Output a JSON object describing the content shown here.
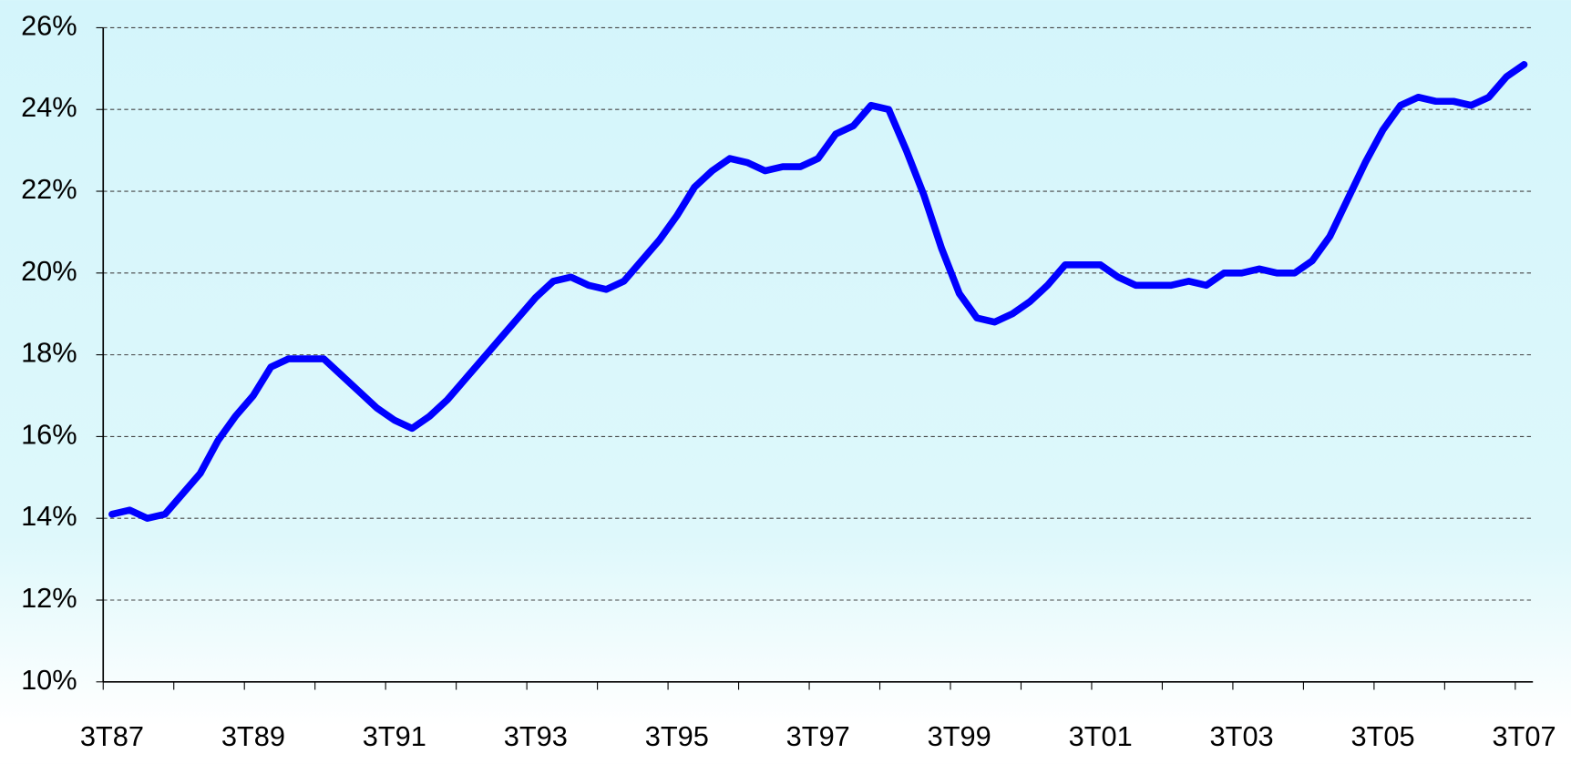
{
  "chart_data": {
    "type": "line",
    "categories": [
      "3T87",
      null,
      null,
      null,
      null,
      null,
      null,
      null,
      "3T89",
      null,
      null,
      null,
      null,
      null,
      null,
      null,
      "3T91",
      null,
      null,
      null,
      null,
      null,
      null,
      null,
      "3T93",
      null,
      null,
      null,
      null,
      null,
      null,
      null,
      "3T95",
      null,
      null,
      null,
      null,
      null,
      null,
      null,
      "3T97",
      null,
      null,
      null,
      null,
      null,
      null,
      null,
      "3T99",
      null,
      null,
      null,
      null,
      null,
      null,
      null,
      "3T01",
      null,
      null,
      null,
      null,
      null,
      null,
      null,
      "3T03",
      null,
      null,
      null,
      null,
      null,
      null,
      null,
      "3T05",
      null,
      null,
      null,
      null,
      null,
      null,
      null,
      "3T07"
    ],
    "values": [
      14.1,
      14.2,
      14.0,
      14.1,
      14.6,
      15.1,
      15.9,
      16.5,
      17.0,
      17.7,
      17.9,
      17.9,
      17.9,
      17.5,
      17.1,
      16.7,
      16.4,
      16.2,
      16.5,
      16.9,
      17.4,
      17.9,
      18.4,
      18.9,
      19.4,
      19.8,
      19.9,
      19.7,
      19.6,
      19.8,
      20.3,
      20.8,
      21.4,
      22.1,
      22.5,
      22.8,
      22.7,
      22.5,
      22.6,
      22.6,
      22.8,
      23.4,
      23.6,
      24.1,
      24.0,
      23.0,
      21.9,
      20.6,
      19.5,
      18.9,
      18.8,
      19.0,
      19.3,
      19.7,
      20.2,
      20.2,
      20.2,
      19.9,
      19.7,
      19.7,
      19.7,
      19.8,
      19.7,
      20.0,
      20.0,
      20.1,
      20.0,
      20.0,
      20.3,
      20.9,
      21.8,
      22.7,
      23.5,
      24.1,
      24.3,
      24.2,
      24.2,
      24.1,
      24.3,
      24.8,
      25.1
    ],
    "color": "#0000ff",
    "ylim": [
      10,
      26
    ],
    "yticks": [
      {
        "value": 10,
        "label": "10%"
      },
      {
        "value": 12,
        "label": "12%"
      },
      {
        "value": 14,
        "label": "14%"
      },
      {
        "value": 16,
        "label": "16%"
      },
      {
        "value": 18,
        "label": "18%"
      },
      {
        "value": 20,
        "label": "20%"
      },
      {
        "value": 22,
        "label": "22%"
      },
      {
        "value": 24,
        "label": "24%"
      },
      {
        "value": 26,
        "label": "26%"
      }
    ],
    "grid": true
  }
}
